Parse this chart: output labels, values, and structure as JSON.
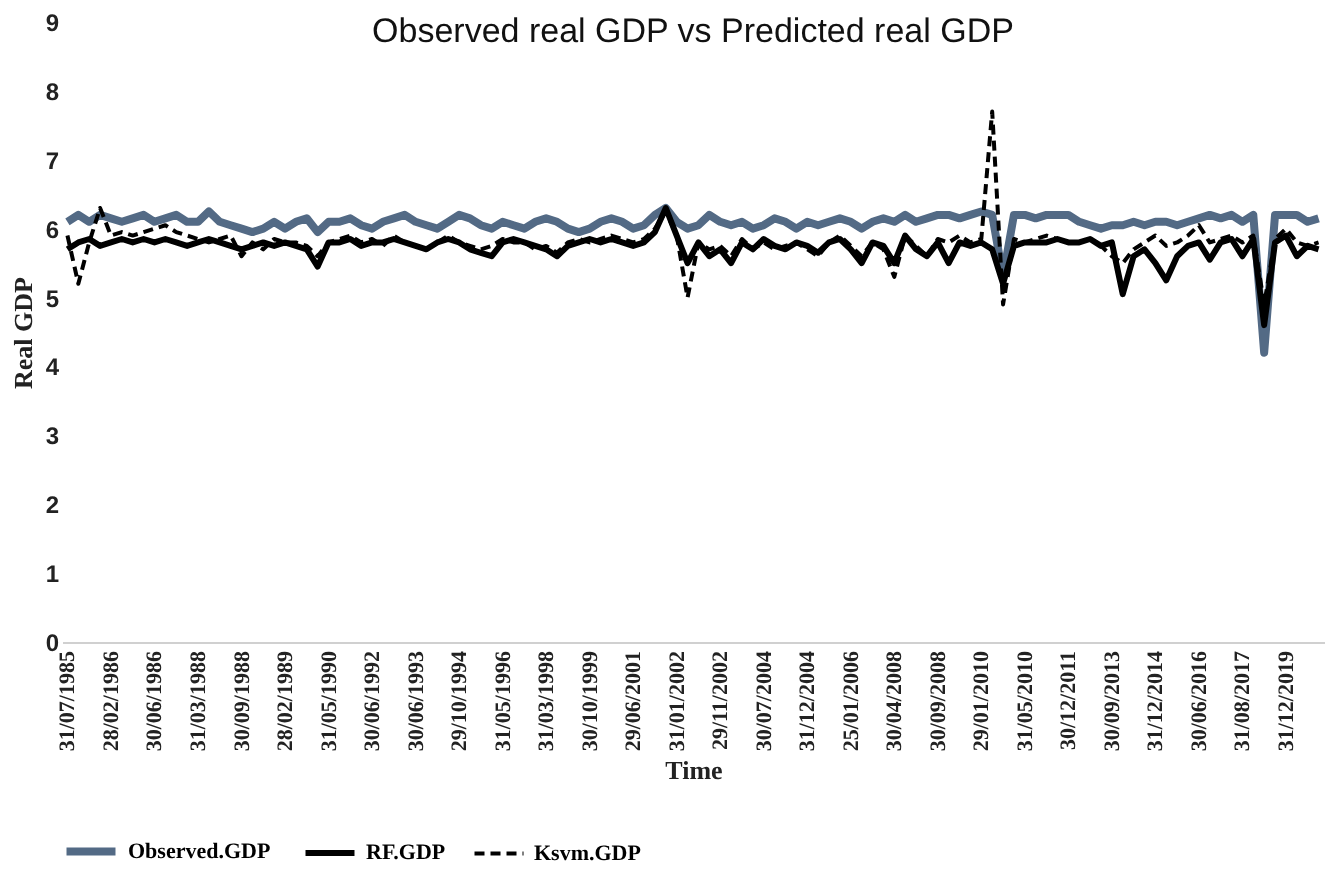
{
  "chart_data": {
    "type": "line",
    "title": "Observed real GDP vs Predicted real GDP",
    "xlabel": "Time",
    "ylabel": "Real GDP",
    "categories": [
      "31/07/1985",
      null,
      null,
      null,
      "28/02/1986",
      null,
      null,
      null,
      "30/06/1986",
      null,
      null,
      null,
      "31/03/1988",
      null,
      null,
      null,
      "30/09/1988",
      null,
      null,
      null,
      "28/02/1989",
      null,
      null,
      null,
      "31/05/1990",
      null,
      null,
      null,
      "30/06/1992",
      null,
      null,
      null,
      "30/06/1993",
      null,
      null,
      null,
      "29/10/1994",
      null,
      null,
      null,
      "31/05/1996",
      null,
      null,
      null,
      "31/03/1998",
      null,
      null,
      null,
      "30/10/1999",
      null,
      null,
      null,
      "29/06/2001",
      null,
      null,
      null,
      "31/01/2002",
      null,
      null,
      null,
      "29/11/2002",
      null,
      null,
      null,
      "30/07/2004",
      null,
      null,
      null,
      "31/12/2004",
      null,
      null,
      null,
      "25/01/2006",
      null,
      null,
      null,
      "30/04/2008",
      null,
      null,
      null,
      "30/09/2008",
      null,
      null,
      null,
      "29/01/2010",
      null,
      null,
      null,
      "31/05/2010",
      null,
      null,
      null,
      "30/12/2011",
      null,
      null,
      null,
      "30/09/2013",
      null,
      null,
      null,
      "31/12/2014",
      null,
      null,
      null,
      "30/06/2016",
      null,
      null,
      null,
      "31/08/2017",
      null,
      null,
      null,
      "31/12/2019",
      null,
      null,
      null
    ],
    "series": [
      {
        "name": "Observed.GDP",
        "color": "#536a85",
        "line_style": "solid",
        "values": [
          6.1,
          6.2,
          6.1,
          6.2,
          6.15,
          6.1,
          6.15,
          6.2,
          6.1,
          6.15,
          6.2,
          6.1,
          6.1,
          6.25,
          6.1,
          6.05,
          6.0,
          5.95,
          6.0,
          6.1,
          6.0,
          6.1,
          6.15,
          5.95,
          6.1,
          6.1,
          6.15,
          6.05,
          6.0,
          6.1,
          6.15,
          6.2,
          6.1,
          6.05,
          6.0,
          6.1,
          6.2,
          6.15,
          6.05,
          6.0,
          6.1,
          6.05,
          6.0,
          6.1,
          6.15,
          6.1,
          6.0,
          5.95,
          6.0,
          6.1,
          6.15,
          6.1,
          6.0,
          6.05,
          6.2,
          6.3,
          6.1,
          6.0,
          6.05,
          6.2,
          6.1,
          6.05,
          6.1,
          6.0,
          6.05,
          6.15,
          6.1,
          6.0,
          6.1,
          6.05,
          6.1,
          6.15,
          6.1,
          6.0,
          6.1,
          6.15,
          6.1,
          6.2,
          6.1,
          6.15,
          6.2,
          6.2,
          6.15,
          6.2,
          6.25,
          6.2,
          5.3,
          6.2,
          6.2,
          6.15,
          6.2,
          6.2,
          6.2,
          6.1,
          6.05,
          6.0,
          6.05,
          6.05,
          6.1,
          6.05,
          6.1,
          6.1,
          6.05,
          6.1,
          6.15,
          6.2,
          6.15,
          6.2,
          6.1,
          6.2,
          4.2,
          6.2,
          6.2,
          6.2,
          6.1,
          6.15
        ]
      },
      {
        "name": "RF.GDP",
        "color": "#000000",
        "line_style": "solid",
        "values": [
          5.7,
          5.8,
          5.85,
          5.75,
          5.8,
          5.85,
          5.8,
          5.85,
          5.8,
          5.85,
          5.8,
          5.75,
          5.8,
          5.85,
          5.8,
          5.75,
          5.7,
          5.75,
          5.8,
          5.75,
          5.8,
          5.75,
          5.7,
          5.45,
          5.8,
          5.8,
          5.85,
          5.75,
          5.8,
          5.8,
          5.85,
          5.8,
          5.75,
          5.7,
          5.8,
          5.85,
          5.8,
          5.7,
          5.65,
          5.6,
          5.8,
          5.85,
          5.8,
          5.75,
          5.7,
          5.6,
          5.75,
          5.8,
          5.85,
          5.8,
          5.85,
          5.8,
          5.75,
          5.8,
          5.95,
          6.3,
          5.9,
          5.5,
          5.8,
          5.6,
          5.7,
          5.5,
          5.8,
          5.7,
          5.85,
          5.75,
          5.7,
          5.8,
          5.75,
          5.65,
          5.8,
          5.85,
          5.7,
          5.5,
          5.8,
          5.75,
          5.5,
          5.9,
          5.7,
          5.6,
          5.8,
          5.5,
          5.8,
          5.75,
          5.8,
          5.7,
          5.2,
          5.75,
          5.8,
          5.8,
          5.8,
          5.85,
          5.8,
          5.8,
          5.85,
          5.75,
          5.8,
          5.05,
          5.6,
          5.7,
          5.5,
          5.25,
          5.6,
          5.75,
          5.8,
          5.55,
          5.8,
          5.85,
          5.6,
          5.85,
          4.6,
          5.8,
          5.9,
          5.6,
          5.75,
          5.7
        ]
      },
      {
        "name": "Ksvm.GDP",
        "color": "#000000",
        "line_style": "dashed",
        "values": [
          5.9,
          5.2,
          5.8,
          6.3,
          5.9,
          5.95,
          5.9,
          5.95,
          6.0,
          6.05,
          5.95,
          5.9,
          5.85,
          5.8,
          5.85,
          5.9,
          5.6,
          5.8,
          5.7,
          5.85,
          5.8,
          5.8,
          5.75,
          5.6,
          5.8,
          5.85,
          5.9,
          5.8,
          5.85,
          5.75,
          5.9,
          5.8,
          5.75,
          5.7,
          5.8,
          5.9,
          5.8,
          5.75,
          5.7,
          5.75,
          5.85,
          5.8,
          5.8,
          5.7,
          5.75,
          5.65,
          5.8,
          5.85,
          5.8,
          5.85,
          5.9,
          5.85,
          5.8,
          5.85,
          6.0,
          6.25,
          5.9,
          5.0,
          5.8,
          5.7,
          5.75,
          5.6,
          5.85,
          5.7,
          5.8,
          5.7,
          5.75,
          5.8,
          5.7,
          5.6,
          5.8,
          5.9,
          5.75,
          5.6,
          5.8,
          5.7,
          5.3,
          5.9,
          5.75,
          5.6,
          5.85,
          5.8,
          5.9,
          5.8,
          5.85,
          7.7,
          4.9,
          5.85,
          5.8,
          5.85,
          5.9,
          5.85,
          5.8,
          5.8,
          5.85,
          5.75,
          5.6,
          5.5,
          5.7,
          5.8,
          5.9,
          5.75,
          5.8,
          5.9,
          6.05,
          5.8,
          5.85,
          5.9,
          5.8,
          5.9,
          4.9,
          5.85,
          6.0,
          5.8,
          5.75,
          5.8
        ]
      }
    ],
    "ylim": [
      0,
      9
    ],
    "yticks": [
      0,
      1,
      2,
      3,
      4,
      5,
      6,
      7,
      8,
      9
    ],
    "grid": false,
    "legend": "bottom"
  }
}
